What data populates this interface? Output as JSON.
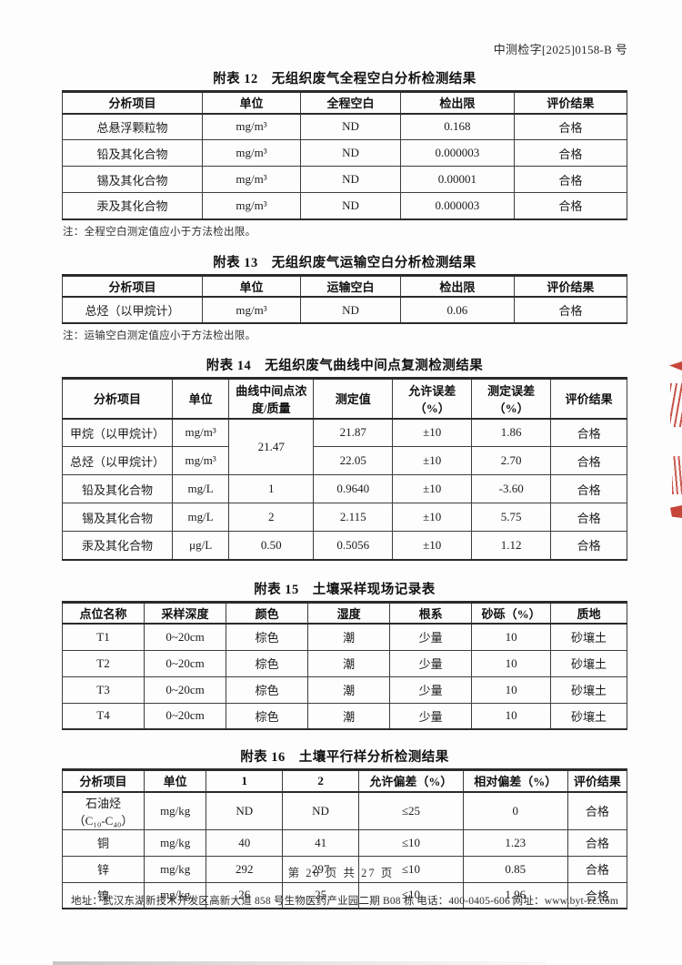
{
  "doc": {
    "ref_number": "中测检字[2025]0158-B 号"
  },
  "tables": [
    {
      "title": "附表 12　无组织废气全程空白分析检测结果",
      "col_widths": [
        "24.8%",
        "17.4%",
        "17.7%",
        "20.1%",
        "20%"
      ],
      "headers": [
        "分析项目",
        "单位",
        "全程空白",
        "检出限",
        "评价结果"
      ],
      "rows": [
        [
          "总悬浮颗粒物",
          "mg/m³",
          "ND",
          "0.168",
          "合格"
        ],
        [
          "铅及其化合物",
          "mg/m³",
          "ND",
          "0.000003",
          "合格"
        ],
        [
          "锡及其化合物",
          "mg/m³",
          "ND",
          "0.00001",
          "合格"
        ],
        [
          "汞及其化合物",
          "mg/m³",
          "ND",
          "0.000003",
          "合格"
        ]
      ],
      "note": "注：全程空白测定值应小于方法检出限。"
    },
    {
      "title": "附表 13　无组织废气运输空白分析检测结果",
      "col_widths": [
        "24.8%",
        "17.4%",
        "17.7%",
        "20.1%",
        "20%"
      ],
      "headers": [
        "分析项目",
        "单位",
        "运输空白",
        "检出限",
        "评价结果"
      ],
      "rows": [
        [
          "总烃（以甲烷计）",
          "mg/m³",
          "ND",
          "0.06",
          "合格"
        ]
      ],
      "note": "注：运输空白测定值应小于方法检出限。"
    },
    {
      "title": "附表 14　无组织废气曲线中间点复测检测结果",
      "col_widths": [
        "19.5%",
        "10%",
        "15%",
        "14%",
        "14%",
        "14%",
        "13.5%"
      ],
      "headers": [
        "分析项目",
        "单位",
        "曲线中间点浓度/质量",
        "测定值",
        "允许误差（%）",
        "测定误差（%）",
        "评价结果"
      ],
      "rows": [
        [
          "甲烷（以甲烷计）",
          "mg/m³",
          {
            "text": "21.47",
            "rowspan": 2
          },
          "21.87",
          "±10",
          "1.86",
          "合格"
        ],
        [
          "总烃（以甲烷计）",
          "mg/m³",
          null,
          "22.05",
          "±10",
          "2.70",
          "合格"
        ],
        [
          "铅及其化合物",
          "mg/L",
          "1",
          "0.9640",
          "±10",
          "-3.60",
          "合格"
        ],
        [
          "锡及其化合物",
          "mg/L",
          "2",
          "2.115",
          "±10",
          "5.75",
          "合格"
        ],
        [
          "汞及其化合物",
          "μg/L",
          "0.50",
          "0.5056",
          "±10",
          "1.12",
          "合格"
        ]
      ],
      "note": ""
    },
    {
      "title": "附表 15　土壤采样现场记录表",
      "col_widths": [
        "14.5%",
        "14.5%",
        "14.5%",
        "14.5%",
        "14.5%",
        "14%",
        "13.5%"
      ],
      "headers": [
        "点位名称",
        "采样深度",
        "颜色",
        "湿度",
        "根系",
        "砂砾（%）",
        "质地"
      ],
      "rows": [
        [
          "T1",
          "0~20cm",
          "棕色",
          "潮",
          "少量",
          "10",
          "砂壤土"
        ],
        [
          "T2",
          "0~20cm",
          "棕色",
          "潮",
          "少量",
          "10",
          "砂壤土"
        ],
        [
          "T3",
          "0~20cm",
          "棕色",
          "潮",
          "少量",
          "10",
          "砂壤土"
        ],
        [
          "T4",
          "0~20cm",
          "棕色",
          "潮",
          "少量",
          "10",
          "砂壤土"
        ]
      ],
      "note": ""
    },
    {
      "title": "附表 16　土壤平行样分析检测结果",
      "col_widths": [
        "14.5%",
        "11%",
        "13.5%",
        "13.5%",
        "18.5%",
        "18.5%",
        "10.5%"
      ],
      "headers": [
        "分析项目",
        "单位",
        "1",
        "2",
        "允许偏差（%）",
        "相对偏差（%）",
        "评价结果"
      ],
      "rows": [
        [
          "石油烃\n（C₁₀-C₄₀）",
          "mg/kg",
          "ND",
          "ND",
          "≤25",
          "0",
          "合格"
        ],
        [
          "铜",
          "mg/kg",
          "40",
          "41",
          "≤10",
          "1.23",
          "合格"
        ],
        [
          "锌",
          "mg/kg",
          "292",
          "297",
          "≤10",
          "0.85",
          "合格"
        ],
        [
          "镍",
          "mg/kg",
          "26",
          "25",
          "≤10",
          "1.96",
          "合格"
        ]
      ],
      "note": ""
    }
  ],
  "footer": {
    "page_info": "第 20 页 共 27 页",
    "address": "地址：武汉东湖新技术开发区高新大道 858 号生物医药产业园二期 B08 栋",
    "phone": "电话：400-0405-606",
    "website": "网址：www.byt-zc.com"
  },
  "stamp": {
    "color": "#c6473a",
    "description": "red-seal-fragment-clipped-at-page-edge"
  }
}
